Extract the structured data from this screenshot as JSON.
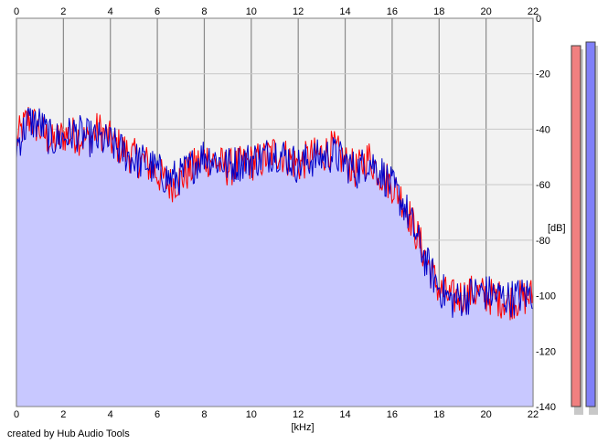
{
  "chart_data": {
    "type": "area",
    "credit": "created by Hub Audio Tools",
    "xlabel": "[kHz]",
    "ylabel": "[dB]",
    "xlim": [
      0,
      22
    ],
    "ylim": [
      -140,
      0
    ],
    "x_ticks": [
      0,
      2,
      4,
      6,
      8,
      10,
      12,
      14,
      16,
      18,
      20,
      22
    ],
    "y_ticks": [
      0,
      -20,
      -40,
      -60,
      -80,
      -100,
      -120,
      -140
    ],
    "x_tick_labels": [
      "0",
      "2",
      "4",
      "6",
      "8",
      "10",
      "12",
      "14",
      "16",
      "18",
      "20",
      "22"
    ],
    "y_tick_labels": [
      "0",
      "-20",
      "-40",
      "-60",
      "-80",
      "-100",
      "-120",
      "-140"
    ],
    "grid": true,
    "fill_color": "#c8c8ff",
    "background_color": "#f2f2f2",
    "series": [
      {
        "color": "#ff0000",
        "x": [
          0,
          0.5,
          1,
          1.5,
          2,
          2.5,
          3,
          3.5,
          4,
          4.5,
          5,
          5.5,
          6,
          6.5,
          7,
          7.5,
          8,
          8.5,
          9,
          9.5,
          10,
          10.5,
          11,
          11.5,
          12,
          12.5,
          13,
          13.5,
          14,
          14.5,
          15,
          15.5,
          16,
          16.5,
          17,
          17.5,
          18,
          18.5,
          19,
          19.5,
          20,
          20.5,
          21,
          21.5,
          22
        ],
        "y": [
          -44,
          -36,
          -40,
          -45,
          -42,
          -42,
          -44,
          -40,
          -44,
          -47,
          -50,
          -52,
          -56,
          -60,
          -58,
          -54,
          -50,
          -52,
          -54,
          -53,
          -52,
          -51,
          -48,
          -50,
          -53,
          -50,
          -49,
          -47,
          -52,
          -55,
          -50,
          -56,
          -60,
          -66,
          -77,
          -88,
          -98,
          -101,
          -100,
          -99,
          -100,
          -101,
          -102,
          -101,
          -100
        ]
      },
      {
        "color": "#0000c8",
        "x": [
          0,
          0.5,
          1,
          1.5,
          2,
          2.5,
          3,
          3.5,
          4,
          4.5,
          5,
          5.5,
          6,
          6.5,
          7,
          7.5,
          8,
          8.5,
          9,
          9.5,
          10,
          10.5,
          11,
          11.5,
          12,
          12.5,
          13,
          13.5,
          14,
          14.5,
          15,
          15.5,
          16,
          16.5,
          17,
          17.5,
          18,
          18.5,
          19,
          19.5,
          20,
          20.5,
          21,
          21.5,
          22
        ],
        "y": [
          -46,
          -37,
          -38,
          -44,
          -43,
          -41,
          -43,
          -44,
          -45,
          -48,
          -51,
          -52,
          -55,
          -58,
          -57,
          -53,
          -49,
          -51,
          -53,
          -52,
          -51,
          -50,
          -48,
          -50,
          -53,
          -51,
          -50,
          -49,
          -52,
          -55,
          -51,
          -55,
          -61,
          -67,
          -78,
          -89,
          -97,
          -102,
          -101,
          -99,
          -99,
          -100,
          -101,
          -100,
          -99
        ]
      }
    ],
    "level_bars": [
      {
        "color": "#f08080",
        "value": -140
      },
      {
        "color": "#8080f8",
        "value": -140
      }
    ]
  }
}
